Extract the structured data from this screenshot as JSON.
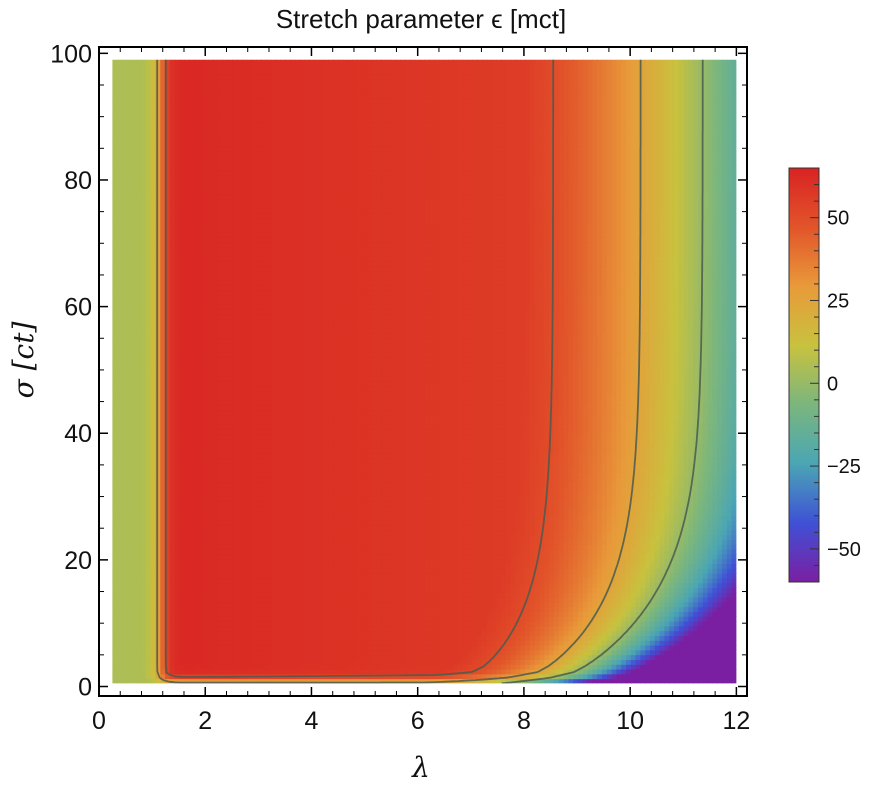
{
  "chart_data": {
    "type": "heatmap",
    "title": "Stretch parameter ϵ [mct]",
    "xlabel": "λ",
    "ylabel": "σ [ct]",
    "xlim": [
      0,
      12.2
    ],
    "ylim": [
      -1.5,
      101
    ],
    "x_ticks": [
      0,
      2,
      4,
      6,
      8,
      10,
      12
    ],
    "y_ticks": [
      0,
      20,
      40,
      60,
      80,
      100
    ],
    "data_extent": {
      "x": [
        0.25,
        12
      ],
      "y": [
        0.5,
        99
      ]
    },
    "colorbar": {
      "range": [
        -60,
        65
      ],
      "ticks": [
        -50,
        -25,
        0,
        25,
        50
      ],
      "colors": [
        "#7b1fa2",
        "#3f51d6",
        "#4aa6b4",
        "#7bb67d",
        "#c8c23e",
        "#e89a3a",
        "#e2542a",
        "#d92323"
      ]
    },
    "x": [
      0.25,
      0.5,
      0.75,
      1.0,
      1.25,
      1.5,
      2,
      3,
      4,
      5,
      6,
      7,
      7.5,
      8,
      8.5,
      9,
      9.5,
      10,
      10.5,
      11,
      11.5,
      12
    ],
    "y": [
      0.5,
      1,
      2,
      4,
      6,
      10,
      15,
      20,
      30,
      40,
      50,
      60,
      70,
      80,
      90,
      99
    ],
    "contour_levels": [
      0,
      25,
      50
    ],
    "grid": false,
    "legend": "colorbar-right"
  },
  "labels": {
    "x_tick_labels": [
      "0",
      "2",
      "4",
      "6",
      "8",
      "10",
      "12"
    ],
    "y_tick_labels": [
      "0",
      "20",
      "40",
      "60",
      "80",
      "100"
    ],
    "colorbar_tick_labels": [
      "−50",
      "−25",
      "0",
      "25",
      "50"
    ]
  }
}
